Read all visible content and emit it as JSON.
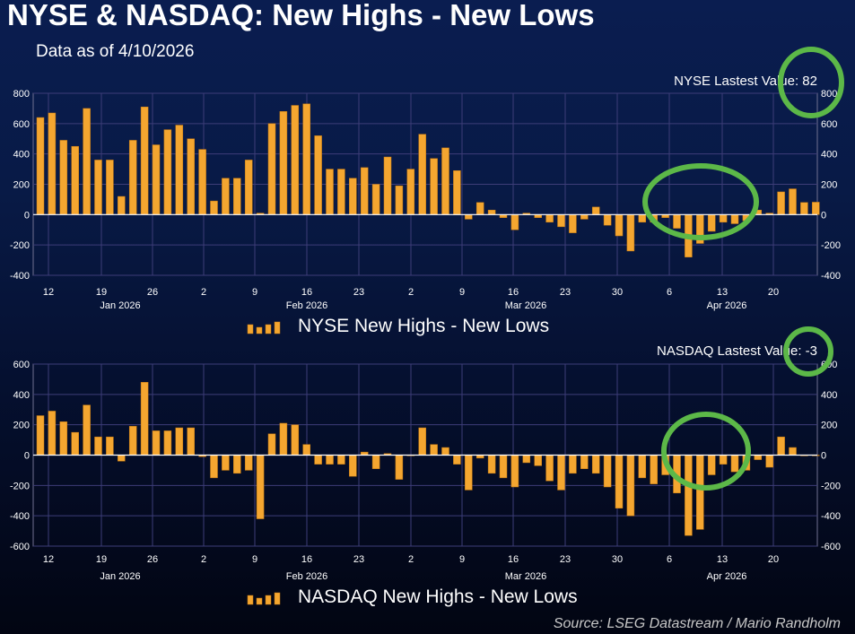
{
  "title": "NYSE & NASDAQ: New Highs - New Lows",
  "subtitle": "Data as of 4/10/2026",
  "source": "Source: LSEG Datastream / Mario Randholm",
  "colors": {
    "bar": "#f4a630",
    "bar_edge": "#c77a10",
    "highlight": "#5cb848",
    "zero_line": "#ffffff",
    "grid": "#3d3d78"
  },
  "chart_data": [
    {
      "type": "bar",
      "title": "NYSE New Highs - New Lows",
      "latest_label": "NYSE Lastest Value: 82",
      "ylim": [
        -400,
        800
      ],
      "yticks": [
        800,
        600,
        400,
        200,
        0,
        -200,
        -400
      ],
      "x_tick_labels": [
        "12",
        "19",
        "26",
        "2",
        "9",
        "16",
        "23",
        "2",
        "9",
        "16",
        "23",
        "30",
        "6",
        "13",
        "20"
      ],
      "month_labels": [
        "Jan 2026",
        "Feb 2026",
        "Mar 2026",
        "Apr 2026"
      ],
      "values": [
        640,
        670,
        490,
        450,
        700,
        360,
        360,
        120,
        490,
        710,
        460,
        560,
        590,
        500,
        430,
        90,
        240,
        240,
        360,
        10,
        600,
        680,
        720,
        730,
        520,
        300,
        300,
        240,
        310,
        200,
        380,
        190,
        300,
        530,
        370,
        440,
        290,
        -30,
        80,
        30,
        -20,
        -100,
        10,
        -20,
        -50,
        -80,
        -120,
        -30,
        50,
        -70,
        -140,
        -240,
        -50,
        -50,
        -20,
        -90,
        -280,
        -190,
        -110,
        -50,
        -60,
        -40,
        30,
        10,
        150,
        170,
        80,
        82
      ]
    },
    {
      "type": "bar",
      "title": "NASDAQ New Highs - New Lows",
      "latest_label": "NASDAQ Lastest Value: -3",
      "ylim": [
        -600,
        600
      ],
      "yticks": [
        600,
        400,
        200,
        0,
        -200,
        -400,
        -600
      ],
      "x_tick_labels": [
        "12",
        "19",
        "26",
        "2",
        "9",
        "16",
        "23",
        "2",
        "9",
        "16",
        "23",
        "30",
        "6",
        "13",
        "20"
      ],
      "month_labels": [
        "Jan 2026",
        "Feb 2026",
        "Mar 2026",
        "Apr 2026"
      ],
      "values": [
        260,
        290,
        220,
        150,
        330,
        120,
        120,
        -40,
        190,
        480,
        160,
        160,
        180,
        180,
        -10,
        -150,
        -100,
        -120,
        -100,
        -420,
        140,
        210,
        200,
        70,
        -60,
        -60,
        -60,
        -140,
        20,
        -90,
        10,
        -160,
        0,
        180,
        70,
        50,
        -60,
        -230,
        -20,
        -120,
        -150,
        -210,
        -50,
        -70,
        -170,
        -230,
        -120,
        -90,
        -120,
        -210,
        -350,
        -400,
        -150,
        -190,
        -130,
        -250,
        -530,
        -490,
        -130,
        -60,
        -110,
        -100,
        -30,
        -80,
        120,
        50,
        -5,
        -3
      ]
    }
  ]
}
